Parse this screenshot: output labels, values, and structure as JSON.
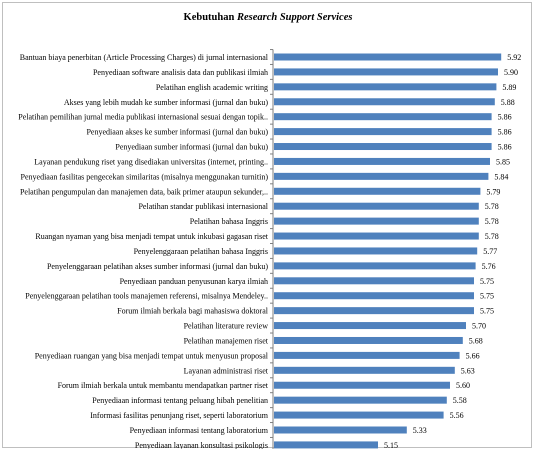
{
  "chart_data": {
    "type": "bar",
    "orientation": "horizontal",
    "title": "Kebutuhan Research Support Services",
    "title_parts": {
      "plain": "Kebutuhan ",
      "italic": "Research Support Services"
    },
    "xlabel": "",
    "ylabel": "",
    "xlim": [
      4.5,
      6.0
    ],
    "grid": false,
    "legend": "none",
    "bar_color": "#4f81bd",
    "categories": [
      "Bantuan biaya penerbitan (Article Processing Charges) di jurnal internasional",
      "Penyediaan software analisis data dan publikasi ilmiah",
      "Pelatihan english academic writing",
      "Akses yang lebih mudah ke sumber informasi (jurnal dan buku)",
      "Pelatihan pemilihan jurnal media publikasi internasional sesuai dengan topik..",
      "Penyediaan akses ke sumber informasi (jurnal dan buku)",
      "Penyediaan sumber informasi (jurnal dan buku)",
      "Layanan pendukung riset yang disediakan universitas (internet, printing..",
      "Penyediaan fasilitas pengecekan similaritas (misalnya menggunakan turnitin)",
      "Pelatihan pengumpulan dan manajemen data, baik primer ataupun sekunder,..",
      "Pelatihan standar publikasi internasional",
      "Pelatihan bahasa Inggris",
      "Ruangan nyaman yang bisa menjadi tempat untuk inkubasi gagasan riset",
      "Penyelenggaraan pelatihan bahasa Inggris",
      "Penyelenggaraan pelatihan akses sumber informasi (jurnal dan buku)",
      "Penyediaan panduan penyusunan karya ilmiah",
      "Penyelenggaraan pelatihan tools manajemen referensi, misalnya Mendeley..",
      "Forum ilmiah berkala bagi mahasiswa doktoral",
      "Pelatihan literature review",
      "Pelatihan manajemen riset",
      "Penyediaan ruangan yang bisa menjadi tempat untuk menyusun proposal",
      "Layanan administrasi riset",
      "Forum ilmiah berkala untuk membantu mendapatkan partner riset",
      "Penyediaan informasi tentang peluang hibah penelitian",
      "Informasi fasilitas penunjang riset, seperti laboratorium",
      "Penyediaan informasi tentang laboratorium",
      "Penyediaan layanan konsultasi psikologis"
    ],
    "values": [
      5.92,
      5.9,
      5.89,
      5.88,
      5.86,
      5.86,
      5.86,
      5.85,
      5.84,
      5.79,
      5.78,
      5.78,
      5.78,
      5.77,
      5.76,
      5.75,
      5.75,
      5.75,
      5.7,
      5.68,
      5.66,
      5.63,
      5.6,
      5.58,
      5.56,
      5.33,
      5.15
    ],
    "value_labels": [
      "5.92",
      "5.90",
      "5.89",
      "5.88",
      "5.86",
      "5.86",
      "5.86",
      "5.85",
      "5.84",
      "5.79",
      "5.78",
      "5.78",
      "5.78",
      "5.77",
      "5.76",
      "5.75",
      "5.75",
      "5.75",
      "5.70",
      "5.68",
      "5.66",
      "5.63",
      "5.60",
      "5.58",
      "5.56",
      "5.33",
      "5.15"
    ]
  }
}
